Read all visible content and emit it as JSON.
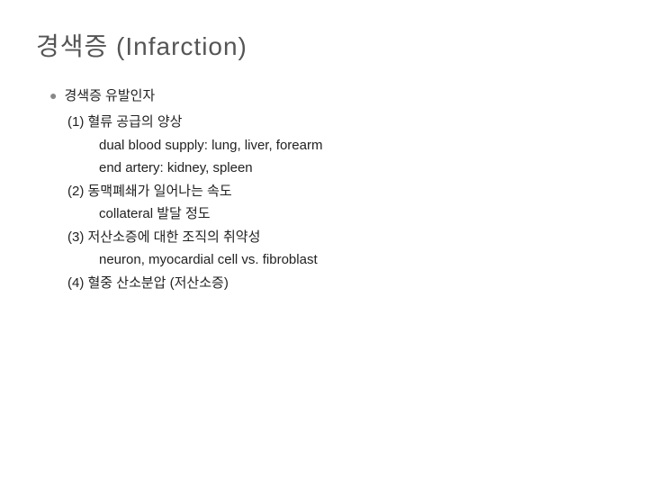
{
  "slide": {
    "title": "경색증 (Infarction)",
    "title_fontsize": 28,
    "title_color": "#555555",
    "body_fontsize": 15,
    "body_color": "#222222",
    "background_color": "#ffffff",
    "bullet_label": "경색증 유발인자",
    "items": [
      {
        "num": "(1) 혈류 공급의 양상",
        "subs": [
          "dual blood supply: lung, liver, forearm",
          "end artery: kidney, spleen"
        ]
      },
      {
        "num": "(2) 동맥폐쇄가 일어나는 속도",
        "subs": [
          "collateral  발달 정도"
        ]
      },
      {
        "num": "(3) 저산소증에 대한 조직의 취약성",
        "subs": [
          "neuron, myocardial cell vs. fibroblast"
        ]
      },
      {
        "num": "(4) 혈중 산소분압 (저산소증)",
        "subs": []
      }
    ]
  }
}
